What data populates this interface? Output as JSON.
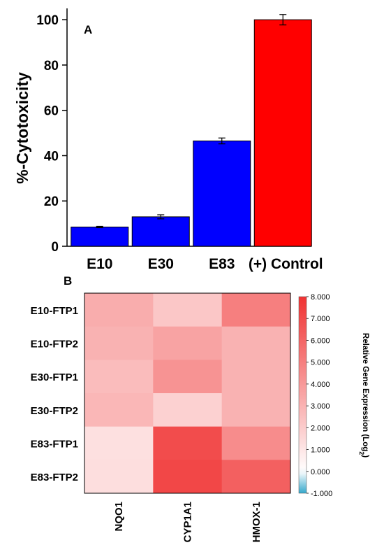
{
  "chart_data": [
    {
      "panel_label": "A",
      "type": "bar",
      "categories": [
        "E10",
        "E30",
        "E83",
        "(+) Control"
      ],
      "values": [
        8.5,
        13,
        46.5,
        100
      ],
      "errors": [
        0.3,
        0.9,
        1.3,
        2.3
      ],
      "colors": [
        "#0000ff",
        "#0000ff",
        "#0000ff",
        "#ff0000"
      ],
      "ylabel": "%-Cytotoxicity",
      "ylim": [
        0,
        105
      ],
      "yticks": [
        0,
        20,
        40,
        60,
        80,
        100
      ],
      "grid": false
    },
    {
      "panel_label": "B",
      "type": "heatmap",
      "rows": [
        "E10-FTP1",
        "E10-FTP2",
        "E30-FTP1",
        "E30-FTP2",
        "E83-FTP1",
        "E83-FTP2"
      ],
      "columns": [
        "NQO1",
        "CYP1A1",
        "HMOX-1"
      ],
      "values": [
        [
          3.2,
          2.2,
          5.0
        ],
        [
          3.0,
          3.6,
          3.0
        ],
        [
          2.6,
          4.2,
          3.0
        ],
        [
          2.8,
          1.8,
          3.0
        ],
        [
          1.2,
          7.0,
          4.5
        ],
        [
          1.3,
          7.2,
          6.2
        ]
      ],
      "colorbar": {
        "label": "Relative Gene Expression (Log",
        "label_sub": "2",
        "label_end": ")",
        "range": [
          -1,
          8
        ],
        "ticks": [
          "8.000",
          "7.000",
          "6.000",
          "5.000",
          "4.000",
          "3.000",
          "2.000",
          "1.000",
          "0.000",
          "-1.000"
        ],
        "tick_values": [
          8,
          7,
          6,
          5,
          4,
          3,
          2,
          1,
          0,
          -1
        ],
        "low_color": "#35a8cc",
        "mid_color": "#ffffff",
        "high_color": "#f03232"
      }
    }
  ]
}
